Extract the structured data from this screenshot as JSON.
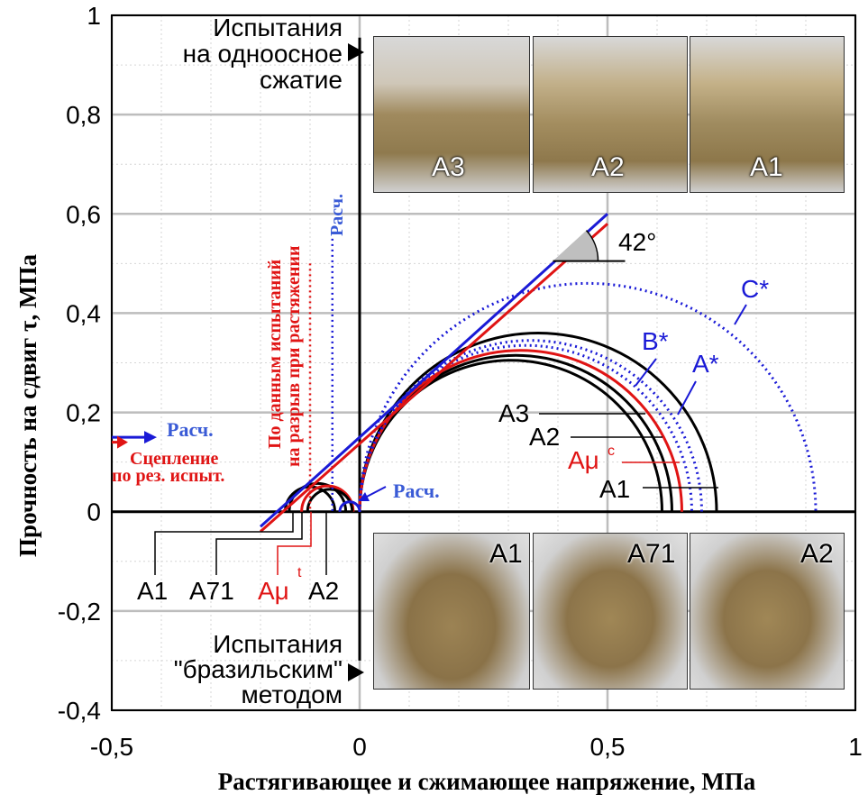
{
  "chart_data": {
    "type": "line",
    "xlabel": "Растягивающее и сжимающее напряжение, МПа",
    "ylabel": "Прочность на сдвиг  τ, МПа",
    "xlim": [
      -0.5,
      1
    ],
    "ylim": [
      -0.4,
      1
    ],
    "x_ticks": [
      "-0,5",
      "0",
      "0,5",
      "1"
    ],
    "y_ticks": [
      "1",
      "0,8",
      "0,6",
      "0,4",
      "0,2",
      "0",
      "-0,2",
      "-0,4"
    ],
    "grid": true,
    "envelopes": [
      {
        "name": "Расч.",
        "color": "#1a1ad6",
        "x": [
          -0.2,
          0.5
        ],
        "y": [
          -0.03,
          0.6
        ]
      },
      {
        "name": "Сцепление по рез. испыт.",
        "color": "#e01414",
        "x": [
          -0.2,
          0.5
        ],
        "y": [
          -0.04,
          0.58
        ]
      }
    ],
    "circles": [
      {
        "name": "A1",
        "color": "#000000",
        "style": "solid",
        "center": 0.36,
        "radius": 0.36
      },
      {
        "name": "A2",
        "color": "#000000",
        "style": "solid",
        "center": 0.315,
        "radius": 0.315
      },
      {
        "name": "A3",
        "color": "#000000",
        "style": "solid",
        "center": 0.305,
        "radius": 0.305
      },
      {
        "name": "Aμᶜ",
        "color": "#e01414",
        "style": "solid",
        "center": 0.325,
        "radius": 0.325
      },
      {
        "name": "A*",
        "color": "#1a1ad6",
        "style": "dotted",
        "center": 0.345,
        "radius": 0.345
      },
      {
        "name": "B*",
        "color": "#1a1ad6",
        "style": "dotted",
        "center": 0.335,
        "radius": 0.335
      },
      {
        "name": "C*",
        "color": "#1a1ad6",
        "style": "dotted",
        "center": 0.46,
        "radius": 0.46
      },
      {
        "name": "A1t",
        "color": "#000000",
        "style": "solid",
        "center": -0.1,
        "radius": 0.05
      },
      {
        "name": "A71t",
        "color": "#000000",
        "style": "solid",
        "center": -0.085,
        "radius": 0.057
      },
      {
        "name": "Aμᵗ",
        "color": "#e01414",
        "style": "solid",
        "center": -0.065,
        "radius": 0.052
      },
      {
        "name": "A2t",
        "color": "#000000",
        "style": "solid",
        "center": -0.06,
        "radius": 0.045
      },
      {
        "name": "Расч. t",
        "color": "#1a1ad6",
        "style": "solid",
        "center": -0.02,
        "radius": 0.02
      }
    ],
    "tension_lines": [
      {
        "color": "#1a1ad6",
        "style": "dotted",
        "x": -0.055
      },
      {
        "color": "#e01414",
        "style": "dotted",
        "x": -0.1
      }
    ],
    "angle": {
      "value": "42°"
    },
    "annotations": {
      "uniaxial": [
        "Испытания",
        "на одноосное",
        "сжатие"
      ],
      "brazil": [
        "Испытания",
        "\"бразильским\"",
        "методом"
      ],
      "tension_red": [
        "По данным испытаний",
        "на разрыв при растяжении"
      ],
      "tension_blue": "Расч.",
      "cohesion_blue": "Расч.",
      "cohesion_red": [
        "Сцепление",
        "по рез. испыт."
      ],
      "small_circle_blue": "Расч.",
      "labels_compression": [
        "A3",
        "A2",
        "Aμ",
        "A1"
      ],
      "labels_tension": [
        "A1",
        "A71",
        "Aμ",
        "A2"
      ],
      "sup_c": "c",
      "sup_t": "t",
      "big_labels": [
        "C*",
        "B*",
        "A*"
      ]
    }
  },
  "photos_top": [
    "A3",
    "A2",
    "A1"
  ],
  "photos_bottom": [
    "A1",
    "A71",
    "A2"
  ],
  "colors": {
    "blue": "#1a1ad6",
    "red": "#e01414",
    "black": "#000000",
    "grid": "#cccccc"
  }
}
